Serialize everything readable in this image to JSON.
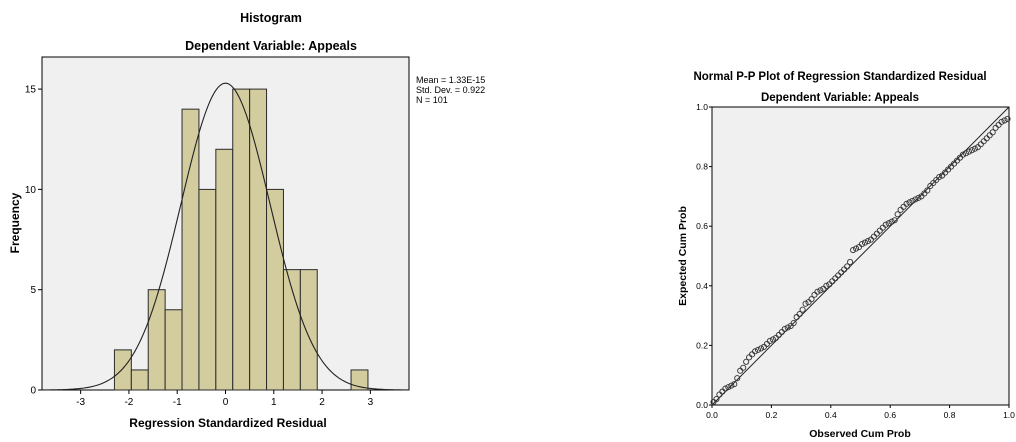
{
  "chart_data": [
    {
      "type": "bar",
      "title": "Histogram",
      "subtitle": "Dependent Variable: Appeals",
      "xlabel": "Regression Standardized Residual",
      "ylabel": "Frequency",
      "xlim": [
        -3.8,
        3.8
      ],
      "ylim": [
        0,
        16.6
      ],
      "xticks": [
        -3,
        -2,
        -1,
        0,
        1,
        2,
        3
      ],
      "yticks": [
        0,
        5,
        10,
        15
      ],
      "plot_background": "#f0f0f0",
      "bar_color": "#d2cc9e",
      "bar_edge": "#2b2b2b",
      "bins": [
        {
          "start": -2.3,
          "end": -1.95,
          "value": 2
        },
        {
          "start": -1.95,
          "end": -1.6,
          "value": 1
        },
        {
          "start": -1.6,
          "end": -1.25,
          "value": 5
        },
        {
          "start": -1.25,
          "end": -0.9,
          "value": 4
        },
        {
          "start": -0.9,
          "end": -0.55,
          "value": 14
        },
        {
          "start": -0.55,
          "end": -0.2,
          "value": 10
        },
        {
          "start": -0.2,
          "end": 0.15,
          "value": 12
        },
        {
          "start": 0.15,
          "end": 0.5,
          "value": 15
        },
        {
          "start": 0.5,
          "end": 0.85,
          "value": 15
        },
        {
          "start": 0.85,
          "end": 1.2,
          "value": 10
        },
        {
          "start": 1.2,
          "end": 1.55,
          "value": 6
        },
        {
          "start": 1.55,
          "end": 1.9,
          "value": 6
        },
        {
          "start": 2.6,
          "end": 2.95,
          "value": 1
        }
      ],
      "normal_curve": {
        "mean": 0,
        "sd": 0.922,
        "n": 101,
        "bin_width": 0.35
      },
      "stats": [
        "Mean = 1.33E-15",
        "Std. Dev. = 0.922",
        "N = 101"
      ]
    },
    {
      "type": "scatter",
      "title": "Normal P-P Plot of Regression Standardized Residual",
      "subtitle": "Dependent Variable: Appeals",
      "xlabel": "Observed Cum Prob",
      "ylabel": "Expected Cum Prob",
      "xlim": [
        0,
        1
      ],
      "ylim": [
        0,
        1
      ],
      "xticks": [
        "0.0",
        "0.2",
        "0.4",
        "0.6",
        "0.8",
        "1.0"
      ],
      "yticks": [
        "0.0",
        "0.2",
        "0.4",
        "0.6",
        "0.8",
        "1.0"
      ],
      "plot_background": "#f0f0f0",
      "marker": "open-circle",
      "reference_line": [
        [
          0,
          0
        ],
        [
          1,
          1
        ]
      ],
      "points": [
        [
          0.005,
          0.01
        ],
        [
          0.015,
          0.02
        ],
        [
          0.025,
          0.035
        ],
        [
          0.035,
          0.045
        ],
        [
          0.045,
          0.055
        ],
        [
          0.055,
          0.06
        ],
        [
          0.065,
          0.065
        ],
        [
          0.075,
          0.07
        ],
        [
          0.085,
          0.09
        ],
        [
          0.095,
          0.115
        ],
        [
          0.105,
          0.125
        ],
        [
          0.115,
          0.145
        ],
        [
          0.125,
          0.16
        ],
        [
          0.135,
          0.17
        ],
        [
          0.145,
          0.18
        ],
        [
          0.155,
          0.185
        ],
        [
          0.165,
          0.19
        ],
        [
          0.175,
          0.195
        ],
        [
          0.185,
          0.205
        ],
        [
          0.195,
          0.215
        ],
        [
          0.205,
          0.22
        ],
        [
          0.215,
          0.225
        ],
        [
          0.225,
          0.235
        ],
        [
          0.235,
          0.245
        ],
        [
          0.245,
          0.255
        ],
        [
          0.255,
          0.26
        ],
        [
          0.265,
          0.265
        ],
        [
          0.275,
          0.275
        ],
        [
          0.285,
          0.295
        ],
        [
          0.295,
          0.305
        ],
        [
          0.305,
          0.32
        ],
        [
          0.315,
          0.34
        ],
        [
          0.325,
          0.345
        ],
        [
          0.335,
          0.355
        ],
        [
          0.345,
          0.37
        ],
        [
          0.355,
          0.38
        ],
        [
          0.365,
          0.385
        ],
        [
          0.375,
          0.39
        ],
        [
          0.385,
          0.4
        ],
        [
          0.395,
          0.405
        ],
        [
          0.405,
          0.415
        ],
        [
          0.415,
          0.425
        ],
        [
          0.425,
          0.435
        ],
        [
          0.435,
          0.445
        ],
        [
          0.445,
          0.455
        ],
        [
          0.455,
          0.465
        ],
        [
          0.465,
          0.48
        ],
        [
          0.475,
          0.52
        ],
        [
          0.485,
          0.525
        ],
        [
          0.495,
          0.53
        ],
        [
          0.505,
          0.54
        ],
        [
          0.515,
          0.545
        ],
        [
          0.525,
          0.55
        ],
        [
          0.535,
          0.555
        ],
        [
          0.545,
          0.565
        ],
        [
          0.555,
          0.575
        ],
        [
          0.565,
          0.585
        ],
        [
          0.575,
          0.595
        ],
        [
          0.585,
          0.605
        ],
        [
          0.595,
          0.61
        ],
        [
          0.605,
          0.615
        ],
        [
          0.615,
          0.62
        ],
        [
          0.625,
          0.64
        ],
        [
          0.635,
          0.655
        ],
        [
          0.645,
          0.665
        ],
        [
          0.655,
          0.675
        ],
        [
          0.665,
          0.68
        ],
        [
          0.675,
          0.685
        ],
        [
          0.685,
          0.69
        ],
        [
          0.695,
          0.695
        ],
        [
          0.705,
          0.7
        ],
        [
          0.715,
          0.71
        ],
        [
          0.725,
          0.72
        ],
        [
          0.735,
          0.735
        ],
        [
          0.745,
          0.745
        ],
        [
          0.755,
          0.755
        ],
        [
          0.765,
          0.765
        ],
        [
          0.775,
          0.77
        ],
        [
          0.785,
          0.78
        ],
        [
          0.795,
          0.79
        ],
        [
          0.805,
          0.8
        ],
        [
          0.815,
          0.81
        ],
        [
          0.825,
          0.82
        ],
        [
          0.835,
          0.83
        ],
        [
          0.845,
          0.84
        ],
        [
          0.855,
          0.845
        ],
        [
          0.865,
          0.85
        ],
        [
          0.875,
          0.855
        ],
        [
          0.885,
          0.86
        ],
        [
          0.895,
          0.865
        ],
        [
          0.905,
          0.875
        ],
        [
          0.915,
          0.885
        ],
        [
          0.925,
          0.895
        ],
        [
          0.935,
          0.905
        ],
        [
          0.945,
          0.915
        ],
        [
          0.955,
          0.93
        ],
        [
          0.965,
          0.94
        ],
        [
          0.975,
          0.95
        ],
        [
          0.985,
          0.955
        ],
        [
          0.995,
          0.96
        ]
      ]
    }
  ]
}
